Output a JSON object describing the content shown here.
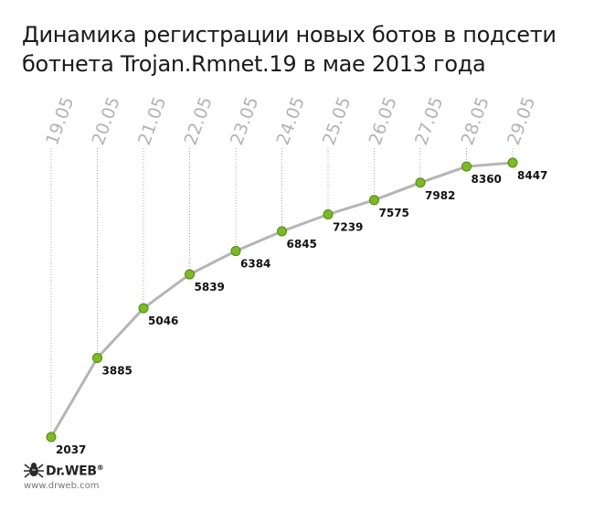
{
  "chart_data": {
    "type": "line",
    "title_lines": [
      "Динамика регистрации новых ботов в подсети",
      "ботнета Trojan.Rmnet.19 в мае 2013 года"
    ],
    "categories": [
      "19.05",
      "20.05",
      "21.05",
      "22.05",
      "23.05",
      "24.05",
      "25.05",
      "26.05",
      "27.05",
      "28.05",
      "29.05"
    ],
    "series": [
      {
        "values": [
          2037,
          3885,
          5046,
          5839,
          6384,
          6845,
          7239,
          7575,
          7982,
          8360,
          8447
        ]
      }
    ],
    "ylim": [
      2037,
      8447
    ],
    "grid": "vertical dotted lines per category",
    "legend": "none",
    "colors": {
      "line": "#b5b5b5",
      "point": "#7dbb22",
      "point_stroke": "#4f8a10",
      "grid": "#aaaaaa",
      "tick": "#b4b4b4"
    }
  },
  "brand": {
    "name": "Dr.WEB",
    "trademark": "®",
    "url": "www.drweb.com",
    "icon": "spider-icon"
  }
}
